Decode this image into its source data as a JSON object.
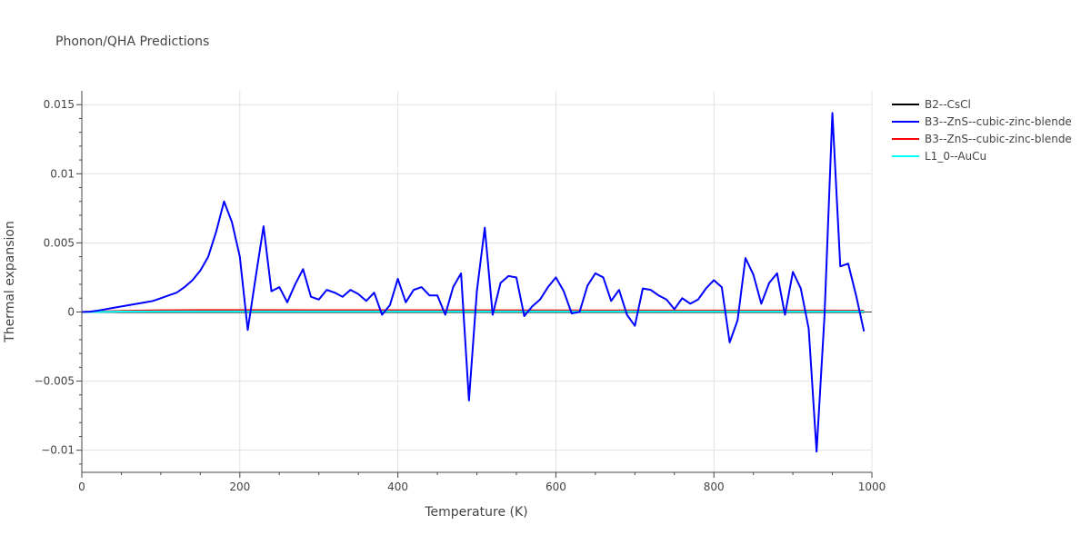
{
  "chart_data": {
    "type": "line",
    "title": "Phonon/QHA Predictions",
    "xlabel": "Temperature (K)",
    "ylabel": "Thermal expansion",
    "xlim": [
      0,
      1000
    ],
    "ylim": [
      -0.0116,
      0.016
    ],
    "grid": true,
    "legend_position": "top-right outside",
    "x_ticks": [
      0,
      200,
      400,
      600,
      800,
      1000
    ],
    "x_tick_labels": [
      "0",
      "200",
      "400",
      "600",
      "800",
      "1000"
    ],
    "y_ticks": [
      -0.01,
      -0.005,
      0,
      0.005,
      0.01,
      0.015
    ],
    "y_tick_labels": [
      "−0.01",
      "−0.005",
      "0",
      "0.005",
      "0.01",
      "0.015"
    ],
    "series": [
      {
        "name": "B2--CsCl",
        "color": "#000000",
        "x": [
          0,
          990
        ],
        "y": [
          0,
          0
        ]
      },
      {
        "name": "B3--ZnS--cubic-zinc-blende",
        "color": "#0000ff",
        "x": [
          0,
          10,
          20,
          30,
          40,
          50,
          60,
          70,
          80,
          90,
          100,
          110,
          120,
          130,
          140,
          150,
          160,
          170,
          180,
          190,
          200,
          210,
          220,
          230,
          240,
          250,
          260,
          270,
          280,
          290,
          300,
          310,
          320,
          330,
          340,
          350,
          360,
          370,
          380,
          390,
          400,
          410,
          420,
          430,
          440,
          450,
          460,
          470,
          480,
          490,
          500,
          510,
          520,
          530,
          540,
          550,
          560,
          570,
          580,
          590,
          600,
          610,
          620,
          630,
          640,
          650,
          660,
          670,
          680,
          690,
          700,
          710,
          720,
          730,
          740,
          750,
          760,
          770,
          780,
          790,
          800,
          810,
          820,
          830,
          840,
          850,
          860,
          870,
          880,
          890,
          900,
          910,
          920,
          930,
          940,
          950,
          960,
          970,
          980,
          990
        ],
        "y": [
          0,
          2e-05,
          0.0001,
          0.0002,
          0.0003,
          0.0004,
          0.0005,
          0.0006,
          0.0007,
          0.0008,
          0.001,
          0.0012,
          0.0014,
          0.0018,
          0.0023,
          0.003,
          0.004,
          0.0058,
          0.008,
          0.0065,
          0.004,
          -0.0013,
          0.0025,
          0.0062,
          0.0015,
          0.0018,
          0.0007,
          0.002,
          0.0031,
          0.0011,
          0.0009,
          0.0016,
          0.0014,
          0.0011,
          0.0016,
          0.0013,
          0.0008,
          0.0014,
          -0.0002,
          0.0005,
          0.0024,
          0.0007,
          0.0016,
          0.0018,
          0.0012,
          0.0012,
          -0.0002,
          0.0018,
          0.0028,
          -0.0064,
          0.0015,
          0.0061,
          -0.0002,
          0.0021,
          0.0026,
          0.0025,
          -0.0003,
          0.0004,
          0.0009,
          0.0018,
          0.0025,
          0.0015,
          -0.0001,
          0,
          0.0019,
          0.0028,
          0.0025,
          0.0008,
          0.0016,
          -0.0002,
          -0.001,
          0.0017,
          0.0016,
          0.0012,
          0.0009,
          0.0002,
          0.001,
          0.0006,
          0.0009,
          0.0017,
          0.0023,
          0.0018,
          -0.0022,
          -0.0006,
          0.0039,
          0.0027,
          0.0006,
          0.0021,
          0.0028,
          -0.0002,
          0.0029,
          0.0017,
          -0.0012,
          -0.0101,
          -0.0003,
          0.0144,
          0.0033,
          0.0035,
          0.0012,
          -0.0014
        ]
      },
      {
        "name": "B3--ZnS--cubic-zinc-blende",
        "color": "#ff0000",
        "x": [
          0,
          20,
          50,
          100,
          150,
          200,
          300,
          500,
          700,
          990
        ],
        "y": [
          0,
          3e-05,
          8e-05,
          0.00012,
          0.00014,
          0.00014,
          0.00013,
          0.00012,
          0.00011,
          0.0001
        ]
      },
      {
        "name": "L1_0--AuCu",
        "color": "#00ffff",
        "x": [
          0,
          20,
          50,
          100,
          200,
          400,
          600,
          800,
          990
        ],
        "y": [
          0,
          1e-05,
          3e-05,
          4e-05,
          4e-05,
          4e-05,
          4e-05,
          4e-05,
          4e-05
        ]
      }
    ]
  }
}
